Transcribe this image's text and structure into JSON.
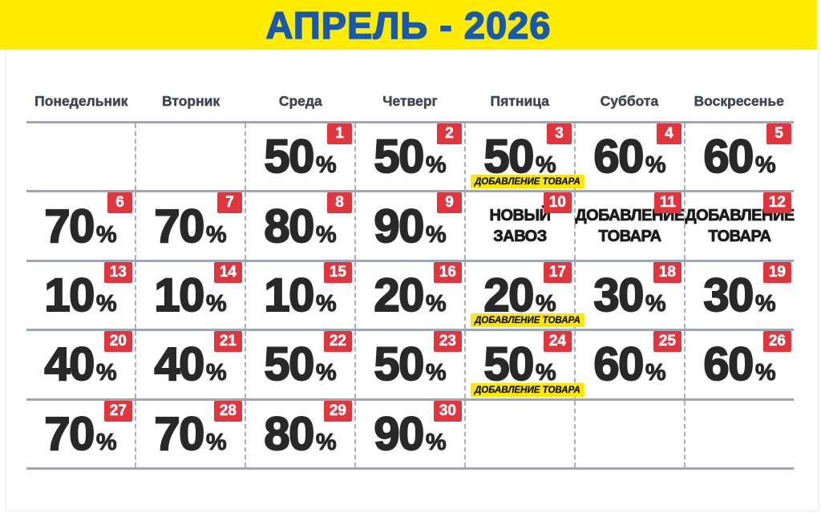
{
  "header": {
    "title": "АПРЕЛЬ - 2026"
  },
  "weekdays": [
    "Понедельник",
    "Вторник",
    "Среда",
    "Четверг",
    "Пятница",
    "Суббота",
    "Воскресенье"
  ],
  "calendar": {
    "percent_sign": "%",
    "rows": [
      [
        {},
        {},
        {
          "day": "1",
          "percent": "50"
        },
        {
          "day": "2",
          "percent": "50"
        },
        {
          "day": "3",
          "percent": "50",
          "tag": "ДОБАВЛЕНИЕ ТОВАРА"
        },
        {
          "day": "4",
          "percent": "60"
        },
        {
          "day": "5",
          "percent": "60"
        }
      ],
      [
        {
          "day": "6",
          "percent": "70"
        },
        {
          "day": "7",
          "percent": "70"
        },
        {
          "day": "8",
          "percent": "80"
        },
        {
          "day": "9",
          "percent": "90"
        },
        {
          "day": "10",
          "note": [
            "НОВЫЙ",
            "ЗАВОЗ"
          ]
        },
        {
          "day": "11",
          "note": [
            "ДОБАВЛЕНИЕ",
            "ТОВАРА"
          ]
        },
        {
          "day": "12",
          "note": [
            "ДОБАВЛЕНИЕ",
            "ТОВАРА"
          ]
        }
      ],
      [
        {
          "day": "13",
          "percent": "10"
        },
        {
          "day": "14",
          "percent": "10"
        },
        {
          "day": "15",
          "percent": "10"
        },
        {
          "day": "16",
          "percent": "20"
        },
        {
          "day": "17",
          "percent": "20",
          "tag": "ДОБАВЛЕНИЕ ТОВАРА"
        },
        {
          "day": "18",
          "percent": "30"
        },
        {
          "day": "19",
          "percent": "30"
        }
      ],
      [
        {
          "day": "20",
          "percent": "40"
        },
        {
          "day": "21",
          "percent": "40"
        },
        {
          "day": "22",
          "percent": "50"
        },
        {
          "day": "23",
          "percent": "50"
        },
        {
          "day": "24",
          "percent": "50",
          "tag": "ДОБАВЛЕНИЕ ТОВАРА"
        },
        {
          "day": "25",
          "percent": "60"
        },
        {
          "day": "26",
          "percent": "60"
        }
      ],
      [
        {
          "day": "27",
          "percent": "70"
        },
        {
          "day": "28",
          "percent": "70"
        },
        {
          "day": "29",
          "percent": "80"
        },
        {
          "day": "30",
          "percent": "90"
        },
        {},
        {},
        {}
      ]
    ]
  },
  "colors": {
    "banner_bg": "#FFEC00",
    "title_text": "#1759AE",
    "weekday_text": "#3E4453",
    "grid_line": "#9FA6B6",
    "column_dash": "#ACB1BE",
    "badge_bg": "#E0353C",
    "badge_text": "#FFFFFF",
    "value_text": "#282828",
    "tag_bg": "#FFE800",
    "note_text": "#1C1C1C"
  }
}
